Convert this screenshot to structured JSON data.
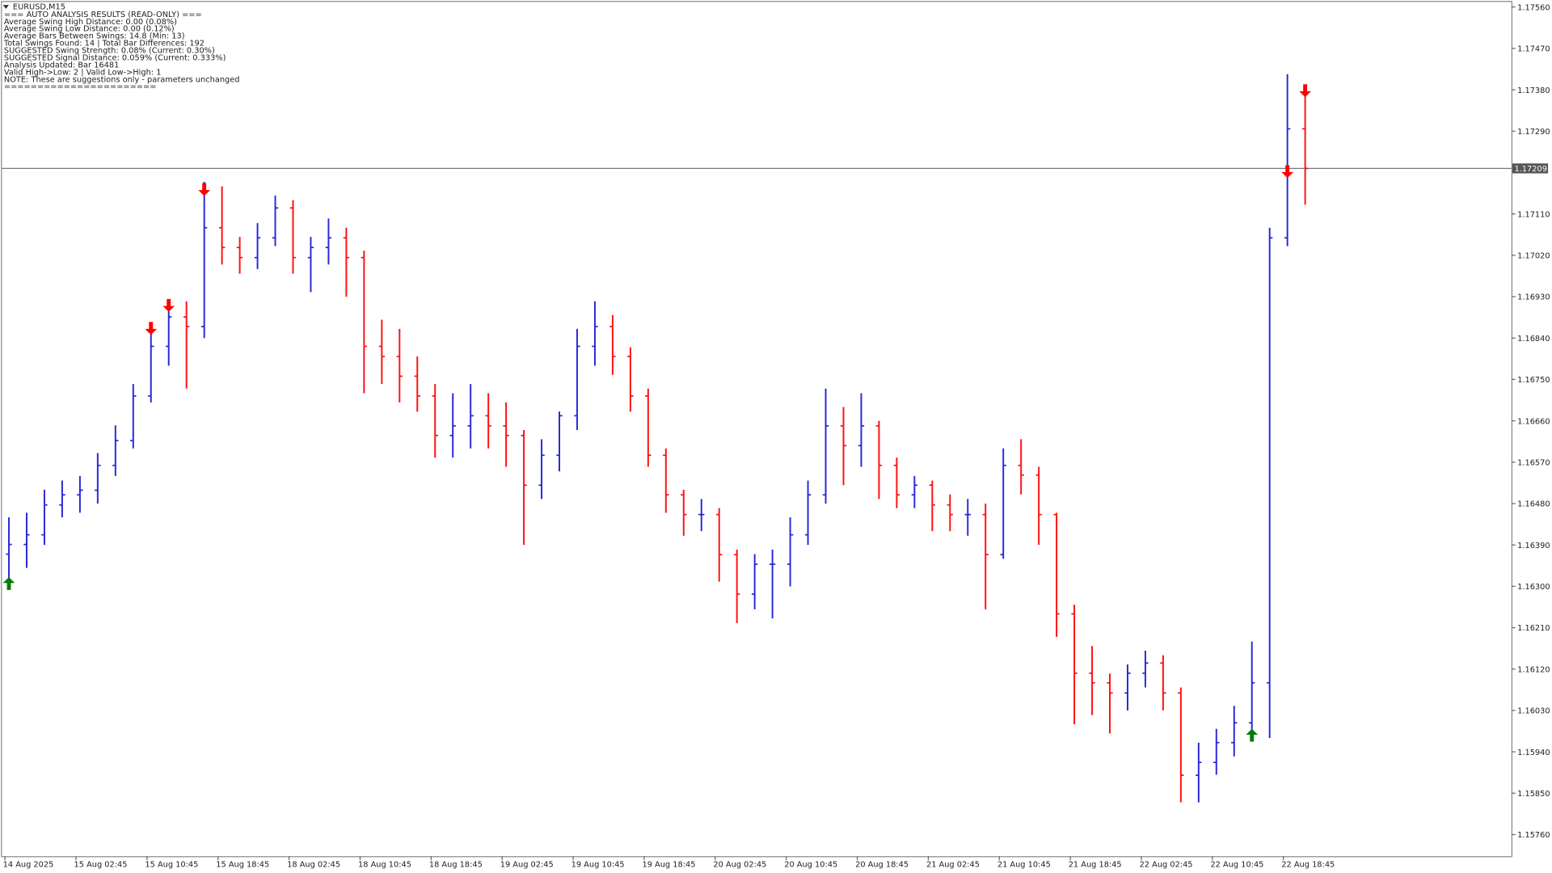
{
  "chart_data": {
    "type": "ohlc",
    "symbol": "EURUSD,M15",
    "text_lines": [
      "=== AUTO ANALYSIS RESULTS (READ-ONLY) ===",
      "Average Swing High Distance: 0.00 (0.08%)",
      "Average Swing Low Distance: 0.00 (0.12%)",
      "Average Bars Between Swings: 14.8 (Min: 13)",
      "Total Swings Found: 14 | Total Bar Differences: 192",
      "SUGGESTED Swing Strength: 0.08% (Current: 0.30%)",
      "SUGGESTED Signal Distance: 0.059% (Current: 0.333%)",
      "Analysis Updated: Bar 16481",
      "Valid High->Low: 2 | Valid Low->High: 1",
      "NOTE: These are suggestions only - parameters unchanged",
      "======================="
    ],
    "categories": [
      "14 Aug 2025",
      null,
      null,
      null,
      "15 Aug 02:45",
      null,
      null,
      null,
      "15 Aug 10:45",
      null,
      null,
      null,
      "15 Aug 18:45",
      null,
      null,
      null,
      "18 Aug 02:45",
      null,
      null,
      null,
      "18 Aug 10:45",
      null,
      null,
      null,
      "18 Aug 18:45",
      null,
      null,
      null,
      "19 Aug 02:45",
      null,
      null,
      null,
      "19 Aug 10:45",
      null,
      null,
      null,
      "19 Aug 18:45",
      null,
      null,
      null,
      "20 Aug 02:45",
      null,
      null,
      null,
      "20 Aug 10:45",
      null,
      null,
      null,
      "20 Aug 18:45",
      null,
      null,
      null,
      "21 Aug 02:45",
      null,
      null,
      null,
      "21 Aug 10:45",
      null,
      null,
      null,
      "21 Aug 18:45",
      null,
      null,
      null,
      "22 Aug 02:45",
      null,
      null,
      null,
      "22 Aug 10:45",
      null,
      null,
      null,
      "22 Aug 18:45",
      null
    ],
    "open": [
      1.1637,
      1.16391,
      1.16412,
      1.16477,
      1.16499,
      1.16509,
      1.16563,
      1.16617,
      1.16714,
      1.16822,
      1.16886,
      1.16865,
      1.1708,
      1.17037,
      1.17015,
      1.17058,
      1.17123,
      1.17015,
      1.17037,
      1.17058,
      1.17015,
      1.16822,
      1.168,
      1.16757,
      1.16714,
      1.16628,
      1.16649,
      1.16671,
      1.16649,
      1.16628,
      1.1652,
      1.16585,
      1.16671,
      1.16822,
      1.16865,
      1.168,
      1.16714,
      1.16585,
      1.16499,
      1.16456,
      1.16456,
      1.16369,
      1.16283,
      1.16348,
      1.16348,
      1.16412,
      1.16499,
      1.16649,
      1.16606,
      1.16649,
      1.16563,
      1.16499,
      1.1652,
      1.16477,
      1.16456,
      1.16456,
      1.16369,
      1.16563,
      1.16542,
      1.16456,
      1.1624,
      1.16111,
      1.1609,
      1.16068,
      1.16111,
      1.16133,
      1.16068,
      1.15889,
      1.15917,
      1.1596,
      1.16003,
      1.1609,
      1.17058,
      1.17295
    ],
    "high": [
      1.1645,
      1.1646,
      1.1651,
      1.1653,
      1.1654,
      1.1659,
      1.1665,
      1.1674,
      1.1685,
      1.1692,
      1.1692,
      1.1718,
      1.1717,
      1.1706,
      1.1709,
      1.1715,
      1.1714,
      1.1706,
      1.171,
      1.1708,
      1.1703,
      1.1688,
      1.1686,
      1.168,
      1.1674,
      1.1672,
      1.1674,
      1.1672,
      1.167,
      1.1664,
      1.1662,
      1.1668,
      1.1686,
      1.1692,
      1.1689,
      1.1682,
      1.1673,
      1.166,
      1.1651,
      1.1649,
      1.1647,
      1.1638,
      1.1637,
      1.1638,
      1.1645,
      1.1653,
      1.1673,
      1.1669,
      1.1672,
      1.1666,
      1.1658,
      1.1654,
      1.1653,
      1.165,
      1.1649,
      1.1648,
      1.166,
      1.1662,
      1.1656,
      1.1646,
      1.1626,
      1.1617,
      1.1611,
      1.1613,
      1.1616,
      1.1615,
      1.1608,
      1.1596,
      1.1599,
      1.1604,
      1.1618,
      1.1708,
      1.17414,
      1.1738
    ],
    "low": [
      1.163,
      1.1634,
      1.1639,
      1.1645,
      1.1646,
      1.1648,
      1.1654,
      1.166,
      1.167,
      1.1678,
      1.1673,
      1.1684,
      1.17,
      1.1698,
      1.1699,
      1.1704,
      1.1698,
      1.1694,
      1.17,
      1.1693,
      1.1672,
      1.1674,
      1.167,
      1.1668,
      1.1658,
      1.1658,
      1.166,
      1.166,
      1.1656,
      1.1639,
      1.1649,
      1.1655,
      1.1664,
      1.1678,
      1.1676,
      1.1668,
      1.1656,
      1.1646,
      1.1641,
      1.1642,
      1.1631,
      1.1622,
      1.1625,
      1.1623,
      1.163,
      1.1639,
      1.1648,
      1.1652,
      1.1656,
      1.1649,
      1.1647,
      1.1647,
      1.1642,
      1.1642,
      1.1641,
      1.1625,
      1.1636,
      1.165,
      1.1639,
      1.1619,
      1.16,
      1.1602,
      1.1598,
      1.1603,
      1.1608,
      1.1603,
      1.1583,
      1.1583,
      1.1589,
      1.1593,
      1.1598,
      1.1597,
      1.1704,
      1.1713
    ],
    "close": [
      1.16391,
      1.16412,
      1.16477,
      1.16499,
      1.16509,
      1.16563,
      1.16617,
      1.16714,
      1.16822,
      1.16886,
      1.16865,
      1.1708,
      1.17037,
      1.17015,
      1.17058,
      1.17123,
      1.17015,
      1.17037,
      1.17058,
      1.17015,
      1.16822,
      1.168,
      1.16757,
      1.16714,
      1.16628,
      1.16649,
      1.16671,
      1.16649,
      1.16628,
      1.1652,
      1.16585,
      1.16671,
      1.16822,
      1.16865,
      1.168,
      1.16714,
      1.16585,
      1.16499,
      1.16456,
      1.16456,
      1.16369,
      1.16283,
      1.16348,
      1.16348,
      1.16412,
      1.16499,
      1.16649,
      1.16606,
      1.16649,
      1.16563,
      1.16499,
      1.1652,
      1.16477,
      1.16456,
      1.16456,
      1.16369,
      1.16563,
      1.16542,
      1.16456,
      1.1624,
      1.16111,
      1.1609,
      1.16068,
      1.16111,
      1.16133,
      1.16068,
      1.15889,
      1.15917,
      1.1596,
      1.16003,
      1.1609,
      1.17058,
      1.17295,
      1.17209
    ],
    "up_signals": [
      1.1632,
      null,
      null,
      null,
      null,
      null,
      null,
      null,
      null,
      null,
      null,
      null,
      null,
      null,
      null,
      null,
      null,
      null,
      null,
      null,
      null,
      null,
      null,
      null,
      null,
      null,
      null,
      null,
      null,
      null,
      null,
      null,
      null,
      null,
      null,
      null,
      null,
      null,
      null,
      null,
      null,
      null,
      null,
      null,
      null,
      null,
      null,
      null,
      null,
      null,
      null,
      null,
      null,
      null,
      null,
      null,
      null,
      null,
      null,
      null,
      null,
      null,
      null,
      null,
      null,
      null,
      null,
      null,
      null,
      null,
      1.1599,
      null,
      null,
      null
    ],
    "down_signals": [
      null,
      null,
      null,
      null,
      null,
      null,
      null,
      null,
      1.16847,
      1.16897,
      null,
      1.17149,
      null,
      null,
      null,
      null,
      null,
      null,
      null,
      null,
      null,
      null,
      null,
      null,
      null,
      null,
      null,
      null,
      null,
      null,
      null,
      null,
      null,
      null,
      null,
      null,
      null,
      null,
      null,
      null,
      null,
      null,
      null,
      null,
      null,
      null,
      null,
      null,
      null,
      null,
      null,
      null,
      null,
      null,
      null,
      null,
      null,
      null,
      null,
      null,
      null,
      null,
      null,
      null,
      null,
      null,
      null,
      null,
      null,
      null,
      null,
      null,
      1.17188,
      1.17364
    ],
    "up_color": "#2828d8",
    "down_color": "#ff1010",
    "signal_up_color": "#0a7a0a",
    "signal_down_color": "#ff0000",
    "current_price": {
      "value": 1.17209,
      "label": "1.17209"
    },
    "ylim": [
      1.15713,
      1.17571
    ],
    "yticks": [
      {
        "value": 1.1756,
        "label": "1.17560"
      },
      {
        "value": 1.1747,
        "label": "1.17470"
      },
      {
        "value": 1.1738,
        "label": "1.17380"
      },
      {
        "value": 1.1729,
        "label": "1.17290"
      },
      {
        "value": 1.1711,
        "label": "1.17110"
      },
      {
        "value": 1.1702,
        "label": "1.17020"
      },
      {
        "value": 1.1693,
        "label": "1.16930"
      },
      {
        "value": 1.1684,
        "label": "1.16840"
      },
      {
        "value": 1.1675,
        "label": "1.16750"
      },
      {
        "value": 1.1666,
        "label": "1.16660"
      },
      {
        "value": 1.1657,
        "label": "1.16570"
      },
      {
        "value": 1.1648,
        "label": "1.16480"
      },
      {
        "value": 1.1639,
        "label": "1.16390"
      },
      {
        "value": 1.163,
        "label": "1.16300"
      },
      {
        "value": 1.1621,
        "label": "1.16210"
      },
      {
        "value": 1.1612,
        "label": "1.16120"
      },
      {
        "value": 1.1603,
        "label": "1.16030"
      },
      {
        "value": 1.1594,
        "label": "1.15940"
      },
      {
        "value": 1.1585,
        "label": "1.15850"
      },
      {
        "value": 1.1576,
        "label": "1.15760"
      }
    ],
    "grid": false
  }
}
